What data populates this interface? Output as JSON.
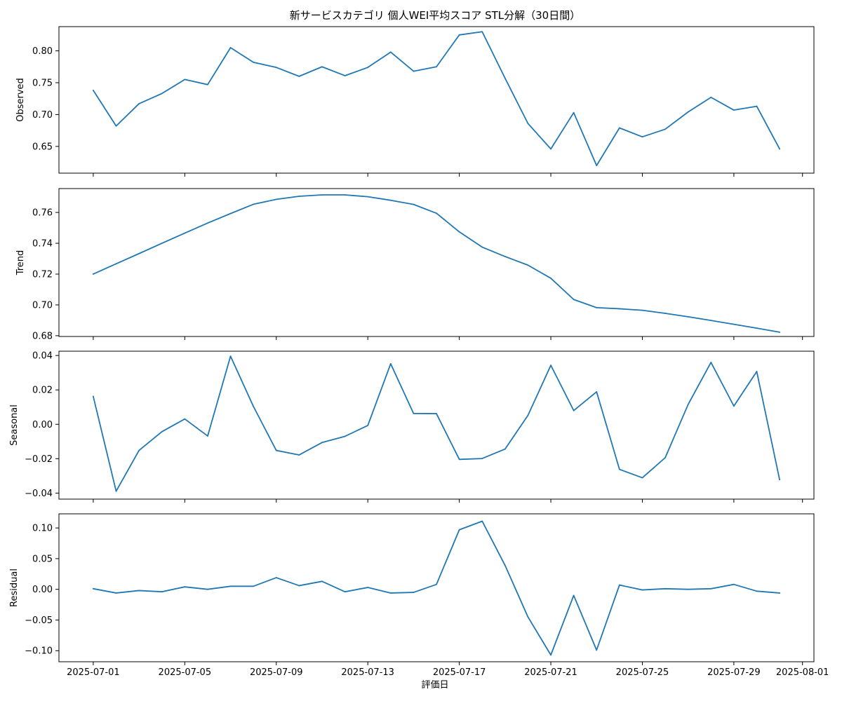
{
  "chart_data": {
    "type": "line",
    "title": "新サービスカテゴリ 個人WEI平均スコア STL分解（30日間）",
    "xlabel": "評価日",
    "x": [
      "2025-07-01",
      "2025-07-02",
      "2025-07-03",
      "2025-07-04",
      "2025-07-05",
      "2025-07-06",
      "2025-07-07",
      "2025-07-08",
      "2025-07-09",
      "2025-07-10",
      "2025-07-11",
      "2025-07-12",
      "2025-07-13",
      "2025-07-14",
      "2025-07-15",
      "2025-07-16",
      "2025-07-17",
      "2025-07-18",
      "2025-07-19",
      "2025-07-20",
      "2025-07-21",
      "2025-07-22",
      "2025-07-23",
      "2025-07-24",
      "2025-07-25",
      "2025-07-26",
      "2025-07-27",
      "2025-07-28",
      "2025-07-29",
      "2025-07-30",
      "2025-07-31"
    ],
    "xticks": [
      "2025-07-01",
      "2025-07-05",
      "2025-07-09",
      "2025-07-13",
      "2025-07-17",
      "2025-07-21",
      "2025-07-25",
      "2025-07-29",
      "2025-08-01"
    ],
    "color": "#1f77b4",
    "grid": false,
    "panels": [
      {
        "ylabel": "Observed",
        "ylim": [
          0.608,
          0.838
        ],
        "yticks": [
          0.65,
          0.7,
          0.75,
          0.8
        ],
        "ytick_labels": [
          "0.65",
          "0.70",
          "0.75",
          "0.80"
        ],
        "values": [
          0.738,
          0.682,
          0.717,
          0.733,
          0.755,
          0.747,
          0.805,
          0.782,
          0.774,
          0.76,
          0.775,
          0.761,
          0.774,
          0.798,
          0.768,
          0.775,
          0.825,
          0.83,
          0.757,
          0.686,
          0.646,
          0.703,
          0.62,
          0.679,
          0.665,
          0.677,
          0.704,
          0.727,
          0.707,
          0.713,
          0.646
        ]
      },
      {
        "ylabel": "Trend",
        "ylim": [
          0.6795,
          0.7755
        ],
        "yticks": [
          0.68,
          0.7,
          0.72,
          0.74,
          0.76
        ],
        "ytick_labels": [
          "0.68",
          "0.70",
          "0.72",
          "0.74",
          "0.76"
        ],
        "values": [
          0.72,
          0.7267,
          0.7333,
          0.74,
          0.7466,
          0.7531,
          0.7593,
          0.7653,
          0.7685,
          0.7705,
          0.7714,
          0.7714,
          0.7702,
          0.7679,
          0.7652,
          0.7595,
          0.7474,
          0.7375,
          0.7314,
          0.7258,
          0.7173,
          0.7035,
          0.6982,
          0.6975,
          0.6965,
          0.6945,
          0.6923,
          0.6899,
          0.6874,
          0.6849,
          0.6823
        ]
      },
      {
        "ylabel": "Seasonal",
        "ylim": [
          -0.0435,
          0.0425
        ],
        "yticks": [
          -0.04,
          -0.02,
          0.0,
          0.02,
          0.04
        ],
        "ytick_labels": [
          "−0.04",
          "−0.02",
          "0.00",
          "0.02",
          "0.04"
        ],
        "values": [
          0.0162,
          -0.0389,
          -0.0152,
          -0.0043,
          0.0031,
          -0.0068,
          0.0396,
          0.0104,
          -0.0152,
          -0.0178,
          -0.0106,
          -0.007,
          -0.0007,
          0.0352,
          0.0063,
          0.0062,
          -0.0204,
          -0.0199,
          -0.0144,
          0.0052,
          0.0343,
          0.008,
          0.0189,
          -0.0262,
          -0.0311,
          -0.0194,
          0.0115,
          0.036,
          0.0106,
          0.0307,
          -0.0322
        ]
      },
      {
        "ylabel": "Residual",
        "ylim": [
          -0.118,
          0.123
        ],
        "yticks": [
          -0.1,
          -0.05,
          0.0,
          0.05,
          0.1
        ],
        "ytick_labels": [
          "−0.10",
          "−0.05",
          "0.00",
          "0.05",
          "0.10"
        ],
        "values": [
          0.001,
          -0.006,
          -0.002,
          -0.004,
          0.004,
          0.0,
          0.005,
          0.005,
          0.019,
          0.006,
          0.013,
          -0.004,
          0.003,
          -0.006,
          -0.005,
          0.008,
          0.097,
          0.111,
          0.039,
          -0.045,
          -0.107,
          -0.01,
          -0.099,
          0.007,
          -0.001,
          0.001,
          0.0,
          0.001,
          0.008,
          -0.003,
          -0.006
        ]
      }
    ]
  }
}
